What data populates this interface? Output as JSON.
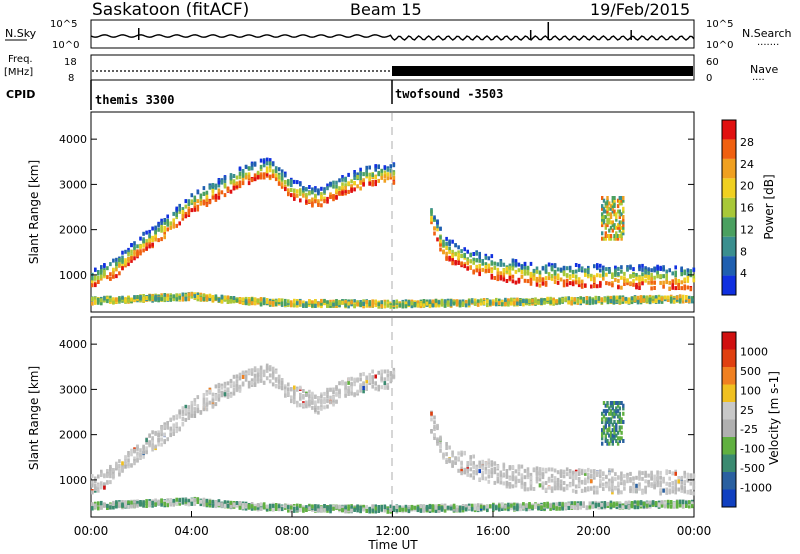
{
  "header": {
    "station": "Saskatoon (fitACF)",
    "beam": "Beam 15",
    "date": "19/Feb/2015"
  },
  "top_panel": {
    "left_label": "N.Sky",
    "right_label": "N.Search",
    "left_ticks": [
      "10^5",
      "10^0"
    ],
    "right_ticks": [
      "10^5",
      "10^0"
    ]
  },
  "freq_panel": {
    "left_label_1": "Freq.",
    "left_label_2": "[MHz]",
    "right_label": "Nave",
    "left_ticks": [
      "18",
      "8"
    ],
    "right_ticks": [
      "60",
      "0"
    ]
  },
  "cpid_panel": {
    "label": "CPID",
    "modes": [
      {
        "name": "themis 3300",
        "start_hour": 0
      },
      {
        "name": "twofsound -3503",
        "start_hour": 12
      }
    ]
  },
  "colors": {
    "power_scale": [
      "#1030e0",
      "#1f5fb0",
      "#3a8f8f",
      "#4aa060",
      "#a8c838",
      "#f0d020",
      "#f0a020",
      "#f06010",
      "#e01010"
    ],
    "velocity_scale": [
      "#1040c0",
      "#2a60a0",
      "#3a8a70",
      "#60b040",
      "#b0b0b0",
      "#c8c8c8",
      "#f0c020",
      "#f08020",
      "#e04010",
      "#d01010"
    ]
  },
  "chart_data": [
    {
      "type": "heatmap",
      "name": "power",
      "title": "",
      "xlabel": "",
      "ylabel": "Slant Range [km]",
      "xlim": [
        0,
        24
      ],
      "ylim": [
        180,
        4600
      ],
      "yticks": [
        "1000",
        "2000",
        "3000",
        "4000"
      ],
      "colorbar_label": "Power [dB]",
      "colorbar_ticks": [
        "4",
        "8",
        "12",
        "16",
        "20",
        "24",
        "28"
      ],
      "colorbar_range": [
        0,
        32
      ],
      "bands": [
        {
          "name": "f-region-evening",
          "hours": [
            0,
            1,
            2,
            3,
            4,
            5,
            6,
            7,
            8,
            9,
            10,
            11,
            12
          ],
          "ranges": [
            800,
            1100,
            1600,
            2000,
            2500,
            2800,
            3100,
            3300,
            2800,
            2600,
            2900,
            3100,
            3150
          ]
        },
        {
          "name": "f-region-morning",
          "hours": [
            13.5,
            14,
            15,
            16,
            17,
            18,
            19,
            20,
            21,
            22,
            23,
            24
          ],
          "ranges": [
            2200,
            1500,
            1200,
            1050,
            950,
            900,
            880,
            870,
            860,
            850,
            840,
            830
          ]
        },
        {
          "name": "e-region-clutter",
          "hours": [
            0,
            2,
            4,
            6,
            8,
            12,
            24
          ],
          "ranges": [
            400,
            450,
            500,
            400,
            350,
            330,
            450
          ]
        }
      ],
      "patch": {
        "hour_start": 20.3,
        "hour_end": 21.2,
        "range_start": 1800,
        "range_end": 2700
      }
    },
    {
      "type": "heatmap",
      "name": "velocity",
      "title": "",
      "xlabel": "Time UT",
      "ylabel": "Slant Range [km]",
      "xlim": [
        0,
        24
      ],
      "ylim": [
        180,
        4600
      ],
      "xticks": [
        "00:00",
        "04:00",
        "08:00",
        "12:00",
        "16:00",
        "20:00",
        "00:00"
      ],
      "yticks": [
        "1000",
        "2000",
        "3000",
        "4000"
      ],
      "colorbar_label": "Velocity [m s-1]",
      "colorbar_ticks": [
        "1000",
        "500",
        "100",
        "25",
        "-25",
        "-100",
        "-500",
        "-1000"
      ],
      "dominant_velocity_range": [
        -25,
        25
      ]
    }
  ],
  "axis_x": {
    "label": "Time UT",
    "ticks": [
      "00:00",
      "04:00",
      "08:00",
      "12:00",
      "16:00",
      "20:00",
      "00:00"
    ]
  }
}
